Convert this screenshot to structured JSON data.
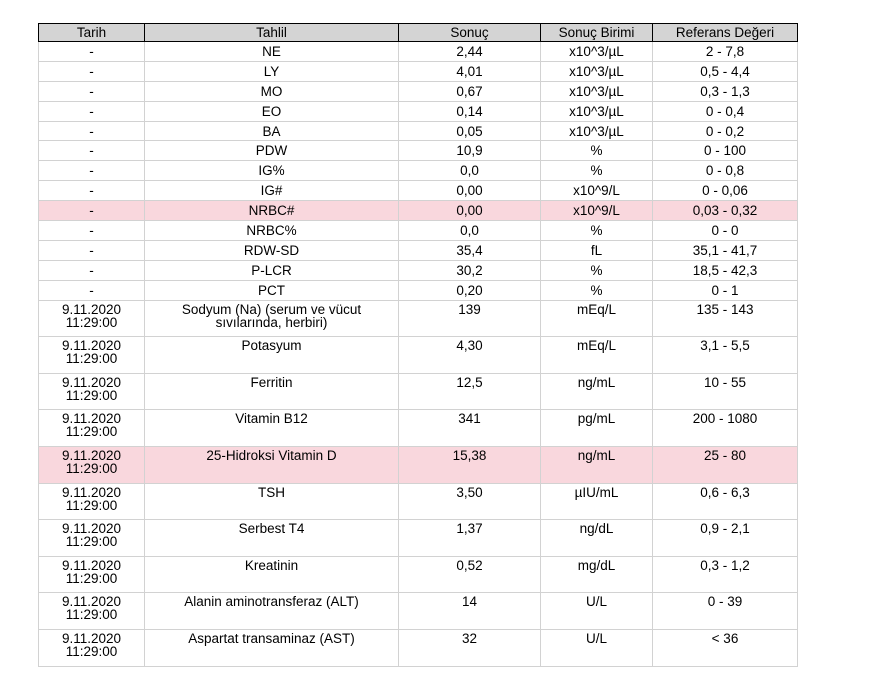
{
  "headers": [
    "Tarih",
    "Tahlil",
    "Sonuç",
    "Sonuç Birimi",
    "Referans Değeri"
  ],
  "rows": [
    {
      "date": "-",
      "test": "NE",
      "result": "2,44",
      "unit": "x10^3/µL",
      "ref": "2 - 7,8"
    },
    {
      "date": "-",
      "test": "LY",
      "result": "4,01",
      "unit": "x10^3/µL",
      "ref": "0,5 - 4,4"
    },
    {
      "date": "-",
      "test": "MO",
      "result": "0,67",
      "unit": "x10^3/µL",
      "ref": "0,3 - 1,3"
    },
    {
      "date": "-",
      "test": "EO",
      "result": "0,14",
      "unit": "x10^3/µL",
      "ref": "0 - 0,4"
    },
    {
      "date": "-",
      "test": "BA",
      "result": "0,05",
      "unit": "x10^3/µL",
      "ref": "0 - 0,2"
    },
    {
      "date": "-",
      "test": "PDW",
      "result": "10,9",
      "unit": "%",
      "ref": "0 - 100"
    },
    {
      "date": "-",
      "test": "IG%",
      "result": "0,0",
      "unit": "%",
      "ref": "0 - 0,8"
    },
    {
      "date": "-",
      "test": "IG#",
      "result": "0,00",
      "unit": "x10^9/L",
      "ref": "0 - 0,06"
    },
    {
      "date": "-",
      "test": "NRBC#",
      "result": "0,00",
      "unit": "x10^9/L",
      "ref": "0,03 - 0,32"
    },
    {
      "date": "-",
      "test": "NRBC%",
      "result": "0,0",
      "unit": "%",
      "ref": "0 - 0"
    },
    {
      "date": "-",
      "test": "RDW-SD",
      "result": "35,4",
      "unit": "fL",
      "ref": "35,1 - 41,7"
    },
    {
      "date": "-",
      "test": "P-LCR",
      "result": "30,2",
      "unit": "%",
      "ref": "18,5 - 42,3"
    },
    {
      "date": "-",
      "test": "PCT",
      "result": "0,20",
      "unit": "%",
      "ref": "0 - 1"
    },
    {
      "date_day": "9.11.2020",
      "date_time": "11:29:00",
      "test": "Sodyum (Na) (serum ve vücut",
      "test_line2": "sıvılarında, herbiri)",
      "result": "139",
      "unit": "mEq/L",
      "ref": "135 - 143"
    },
    {
      "date_day": "9.11.2020",
      "date_time": "11:29:00",
      "test": "Potasyum",
      "result": "4,30",
      "unit": "mEq/L",
      "ref": "3,1 - 5,5"
    },
    {
      "date_day": "9.11.2020",
      "date_time": "11:29:00",
      "test": "Ferritin",
      "result": "12,5",
      "unit": "ng/mL",
      "ref": "10 - 55"
    },
    {
      "date_day": "9.11.2020",
      "date_time": "11:29:00",
      "test": "Vitamin B12",
      "result": "341",
      "unit": "pg/mL",
      "ref": "200 - 1080"
    },
    {
      "date_day": "9.11.2020",
      "date_time": "11:29:00",
      "test": "25-Hidroksi Vitamin D",
      "result": "15,38",
      "unit": "ng/mL",
      "ref": "25 - 80"
    },
    {
      "date_day": "9.11.2020",
      "date_time": "11:29:00",
      "test": "TSH",
      "result": "3,50",
      "unit": "µIU/mL",
      "ref": "0,6 - 6,3"
    },
    {
      "date_day": "9.11.2020",
      "date_time": "11:29:00",
      "test": "Serbest T4",
      "result": "1,37",
      "unit": "ng/dL",
      "ref": "0,9 - 2,1"
    },
    {
      "date_day": "9.11.2020",
      "date_time": "11:29:00",
      "test": "Kreatinin",
      "result": "0,52",
      "unit": "mg/dL",
      "ref": "0,3 - 1,2"
    },
    {
      "date_day": "9.11.2020",
      "date_time": "11:29:00",
      "test": "Alanin aminotransferaz (ALT)",
      "result": "14",
      "unit": "U/L",
      "ref": "0 - 39"
    },
    {
      "date_day": "9.11.2020",
      "date_time": "11:29:00",
      "test": "Aspartat transaminaz (AST)",
      "result": "32",
      "unit": "U/L",
      "ref": "< 36"
    }
  ],
  "highlight_color": "#f9d7dd",
  "header_color": "#d4d4d4"
}
